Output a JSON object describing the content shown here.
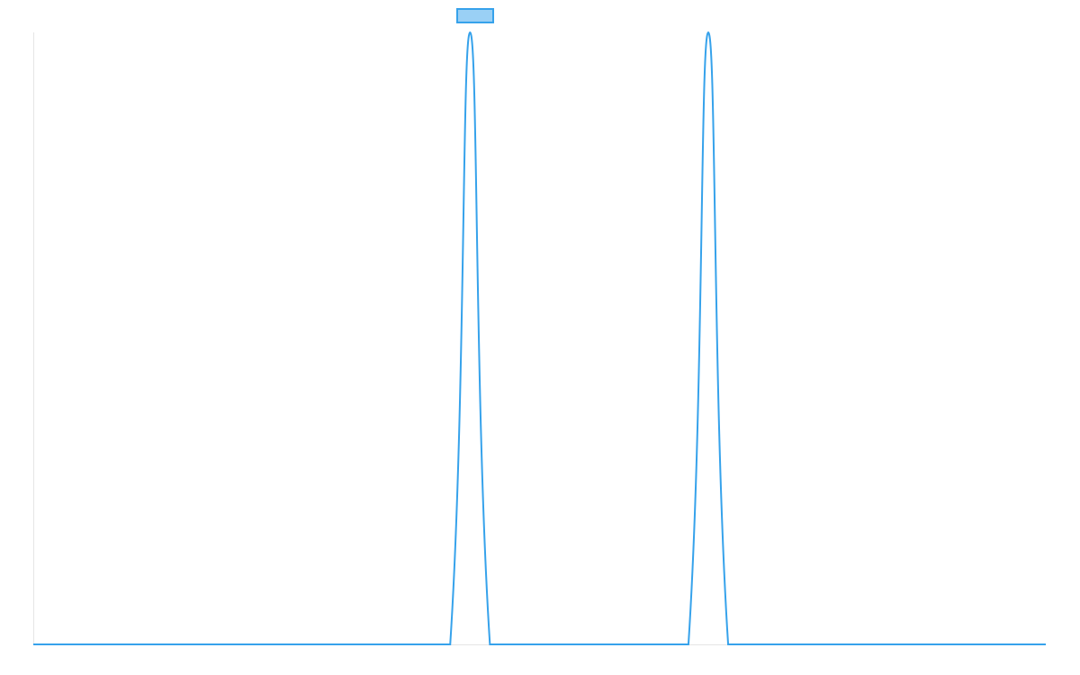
{
  "chart_data": {
    "type": "line",
    "categories": [
      null,
      null,
      null,
      null,
      null,
      null,
      null,
      null,
      null,
      null,
      null,
      null,
      null,
      null,
      null,
      null,
      null,
      null,
      null,
      null,
      null,
      null,
      null,
      null,
      null,
      null,
      null,
      null,
      null,
      null,
      null,
      null,
      null,
      null,
      null,
      null,
      null,
      null,
      null,
      null,
      null,
      null,
      null,
      null,
      null,
      null,
      null,
      null,
      null,
      null,
      null,
      null
    ],
    "series": [
      {
        "color": "#36a2eb",
        "fill": "#9ad0f5",
        "values": [
          0,
          0,
          0,
          0,
          0,
          0,
          0,
          0,
          0,
          0,
          0,
          0,
          0,
          0,
          0,
          0,
          0,
          0,
          0,
          0,
          0,
          0,
          1,
          0,
          0,
          0,
          0,
          0,
          0,
          0,
          0,
          0,
          0,
          0,
          1,
          0,
          0,
          0,
          0,
          0,
          0,
          0,
          0,
          0,
          0,
          0,
          0,
          0,
          0,
          0,
          0,
          0
        ]
      }
    ],
    "ylim": [
      0,
      1
    ],
    "legend": "top"
  }
}
